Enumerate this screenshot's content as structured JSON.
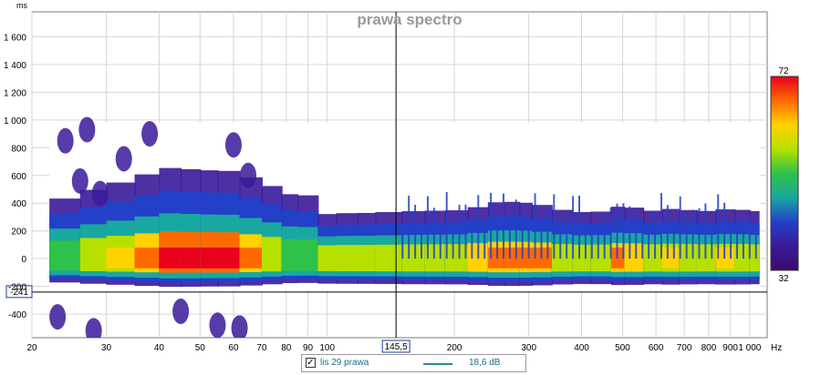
{
  "chart_data": {
    "type": "heatmap",
    "title": "prawa spectro",
    "ylabel": "ms",
    "xunit": "Hz",
    "x_scale": "log",
    "xlim": [
      20,
      1100
    ],
    "ylim": [
      -570,
      1780
    ],
    "x_ticks": [
      20,
      30,
      40,
      50,
      60,
      70,
      80,
      90,
      100,
      200,
      300,
      400,
      500,
      600,
      700,
      800,
      900,
      1000
    ],
    "x_tick_labels": [
      "20",
      "30",
      "40",
      "50",
      "60",
      "70",
      "80",
      "90",
      "100",
      "200",
      "300",
      "400",
      "500",
      "600",
      "700",
      "800",
      "900",
      "1 000"
    ],
    "y_ticks": [
      1600,
      1400,
      1200,
      1000,
      800,
      600,
      400,
      200,
      0,
      -200,
      -400
    ],
    "y_tick_labels": [
      "1 600",
      "1 400",
      "1 200",
      "1 000",
      "800",
      "600",
      "400",
      "200",
      "0",
      "-200",
      "-400"
    ],
    "cursor": {
      "x": 145.5,
      "x_label": "145,5",
      "y": -241,
      "y_label": "-241"
    },
    "colorbar": {
      "max_label": "72",
      "min_label": "32",
      "stops": [
        "#e8001c",
        "#ff6a00",
        "#ffd200",
        "#b6e000",
        "#2fc24a",
        "#19a8a0",
        "#2340c8",
        "#3a1a9a",
        "#3a0a6a"
      ]
    },
    "ridge_points": [
      {
        "x": 22,
        "level": 0.28
      },
      {
        "x": 26,
        "level": 0.45
      },
      {
        "x": 30,
        "level": 0.58
      },
      {
        "x": 35,
        "level": 0.7
      },
      {
        "x": 40,
        "level": 0.86
      },
      {
        "x": 45,
        "level": 0.92
      },
      {
        "x": 50,
        "level": 0.82
      },
      {
        "x": 55,
        "level": 0.88
      },
      {
        "x": 62,
        "level": 0.8
      },
      {
        "x": 70,
        "level": 0.66
      },
      {
        "x": 78,
        "level": 0.5
      },
      {
        "x": 85,
        "level": 0.38
      },
      {
        "x": 95,
        "level": 0.46
      },
      {
        "x": 105,
        "level": 0.55
      },
      {
        "x": 118,
        "level": 0.5
      },
      {
        "x": 130,
        "level": 0.56
      },
      {
        "x": 150,
        "level": 0.54
      },
      {
        "x": 170,
        "level": 0.6
      },
      {
        "x": 190,
        "level": 0.56
      },
      {
        "x": 215,
        "level": 0.62
      },
      {
        "x": 240,
        "level": 0.7
      },
      {
        "x": 262,
        "level": 0.84
      },
      {
        "x": 285,
        "level": 0.72
      },
      {
        "x": 305,
        "level": 0.8
      },
      {
        "x": 340,
        "level": 0.62
      },
      {
        "x": 380,
        "level": 0.58
      },
      {
        "x": 420,
        "level": 0.52
      },
      {
        "x": 470,
        "level": 0.6
      },
      {
        "x": 505,
        "level": 0.74
      },
      {
        "x": 560,
        "level": 0.56
      },
      {
        "x": 620,
        "level": 0.6
      },
      {
        "x": 680,
        "level": 0.64
      },
      {
        "x": 750,
        "level": 0.55
      },
      {
        "x": 830,
        "level": 0.6
      },
      {
        "x": 920,
        "level": 0.62
      },
      {
        "x": 1000,
        "level": 0.58
      },
      {
        "x": 1050,
        "level": 0.56
      }
    ],
    "legend": {
      "checked": true,
      "name": "lis 29 prawa",
      "value_label": "18,6 dB",
      "swatch_color": "#2a8a9a"
    }
  }
}
